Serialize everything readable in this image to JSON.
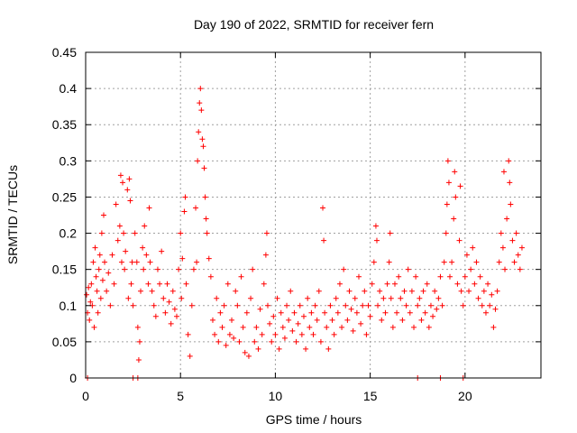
{
  "chart_data": {
    "type": "scatter",
    "title": "Day 190 of 2022, SRMTID for receiver fern",
    "xlabel": "GPS time / hours",
    "ylabel": "SRMTID / TECUs",
    "xlim": [
      0,
      24
    ],
    "ylim": [
      0,
      0.45
    ],
    "xticks": [
      0,
      5,
      10,
      15,
      20
    ],
    "yticks": [
      0,
      0.05,
      0.1,
      0.15,
      0.2,
      0.25,
      0.3,
      0.35,
      0.4,
      0.45
    ],
    "xtick_labels": [
      "0",
      "5",
      "10",
      "15",
      "20"
    ],
    "ytick_labels": [
      "0",
      "0.05",
      "0.1",
      "0.15",
      "0.2",
      "0.25",
      "0.3",
      "0.35",
      "0.4",
      "0.45"
    ],
    "grid": true,
    "marker": "+",
    "color": "#ff0000",
    "series": [
      {
        "name": "SRMTID",
        "points": [
          [
            0.05,
            0.115
          ],
          [
            0.1,
            0.09
          ],
          [
            0.15,
            0.125
          ],
          [
            0.2,
            0.08
          ],
          [
            0.25,
            0.105
          ],
          [
            0.3,
            0.13
          ],
          [
            0.35,
            0.1
          ],
          [
            0.4,
            0.16
          ],
          [
            0.45,
            0.07
          ],
          [
            0.5,
            0.18
          ],
          [
            0.55,
            0.14
          ],
          [
            0.6,
            0.12
          ],
          [
            0.65,
            0.09
          ],
          [
            0.7,
            0.15
          ],
          [
            0.75,
            0.17
          ],
          [
            0.8,
            0.11
          ],
          [
            0.85,
            0.2
          ],
          [
            0.9,
            0.135
          ],
          [
            0.95,
            0.225
          ],
          [
            1.0,
            0.16
          ],
          [
            1.1,
            0.12
          ],
          [
            1.2,
            0.145
          ],
          [
            1.3,
            0.1
          ],
          [
            1.4,
            0.17
          ],
          [
            1.5,
            0.13
          ],
          [
            1.6,
            0.24
          ],
          [
            1.7,
            0.19
          ],
          [
            1.8,
            0.21
          ],
          [
            1.85,
            0.28
          ],
          [
            1.9,
            0.16
          ],
          [
            1.95,
            0.27
          ],
          [
            2.0,
            0.2
          ],
          [
            2.05,
            0.15
          ],
          [
            2.1,
            0.175
          ],
          [
            2.2,
            0.26
          ],
          [
            2.25,
            0.11
          ],
          [
            2.3,
            0.275
          ],
          [
            2.35,
            0.245
          ],
          [
            2.4,
            0.13
          ],
          [
            2.45,
            0.16
          ],
          [
            2.5,
            0.1
          ],
          [
            2.6,
            0.2
          ],
          [
            2.7,
            0.16
          ],
          [
            2.75,
            0.07
          ],
          [
            2.8,
            0.025
          ],
          [
            2.85,
            0.05
          ],
          [
            2.9,
            0.12
          ],
          [
            3.0,
            0.18
          ],
          [
            3.05,
            0.15
          ],
          [
            3.1,
            0.21
          ],
          [
            3.2,
            0.17
          ],
          [
            3.3,
            0.13
          ],
          [
            3.35,
            0.235
          ],
          [
            3.4,
            0.16
          ],
          [
            3.5,
            0.12
          ],
          [
            3.6,
            0.1
          ],
          [
            3.7,
            0.085
          ],
          [
            3.8,
            0.15
          ],
          [
            3.9,
            0.13
          ],
          [
            4.0,
            0.175
          ],
          [
            4.1,
            0.11
          ],
          [
            4.2,
            0.09
          ],
          [
            4.3,
            0.13
          ],
          [
            4.4,
            0.105
          ],
          [
            4.5,
            0.075
          ],
          [
            4.6,
            0.12
          ],
          [
            4.7,
            0.095
          ],
          [
            4.8,
            0.085
          ],
          [
            4.9,
            0.15
          ],
          [
            5.0,
            0.2
          ],
          [
            5.05,
            0.11
          ],
          [
            5.1,
            0.165
          ],
          [
            5.2,
            0.23
          ],
          [
            5.25,
            0.25
          ],
          [
            5.3,
            0.13
          ],
          [
            5.4,
            0.06
          ],
          [
            5.5,
            0.03
          ],
          [
            5.6,
            0.1
          ],
          [
            5.7,
            0.15
          ],
          [
            5.8,
            0.235
          ],
          [
            5.85,
            0.16
          ],
          [
            5.9,
            0.3
          ],
          [
            5.95,
            0.34
          ],
          [
            6.0,
            0.38
          ],
          [
            6.05,
            0.4
          ],
          [
            6.1,
            0.37
          ],
          [
            6.15,
            0.33
          ],
          [
            6.2,
            0.32
          ],
          [
            6.25,
            0.29
          ],
          [
            6.3,
            0.25
          ],
          [
            6.35,
            0.22
          ],
          [
            6.4,
            0.2
          ],
          [
            6.5,
            0.165
          ],
          [
            6.6,
            0.14
          ],
          [
            6.7,
            0.08
          ],
          [
            6.8,
            0.06
          ],
          [
            6.9,
            0.11
          ],
          [
            7.0,
            0.05
          ],
          [
            7.1,
            0.09
          ],
          [
            7.2,
            0.07
          ],
          [
            7.3,
            0.1
          ],
          [
            7.4,
            0.045
          ],
          [
            7.5,
            0.13
          ],
          [
            7.6,
            0.06
          ],
          [
            7.7,
            0.08
          ],
          [
            7.8,
            0.055
          ],
          [
            7.9,
            0.12
          ],
          [
            8.0,
            0.1
          ],
          [
            8.1,
            0.05
          ],
          [
            8.2,
            0.14
          ],
          [
            8.3,
            0.07
          ],
          [
            8.4,
            0.035
          ],
          [
            8.5,
            0.09
          ],
          [
            8.6,
            0.03
          ],
          [
            8.7,
            0.11
          ],
          [
            8.8,
            0.15
          ],
          [
            8.9,
            0.05
          ],
          [
            9.0,
            0.07
          ],
          [
            9.1,
            0.04
          ],
          [
            9.2,
            0.095
          ],
          [
            9.3,
            0.06
          ],
          [
            9.4,
            0.13
          ],
          [
            9.5,
            0.17
          ],
          [
            9.55,
            0.2
          ],
          [
            9.6,
            0.1
          ],
          [
            9.7,
            0.075
          ],
          [
            9.8,
            0.05
          ],
          [
            9.9,
            0.085
          ],
          [
            10.0,
            0.06
          ],
          [
            10.1,
            0.11
          ],
          [
            10.2,
            0.04
          ],
          [
            10.3,
            0.09
          ],
          [
            10.4,
            0.07
          ],
          [
            10.5,
            0.055
          ],
          [
            10.6,
            0.1
          ],
          [
            10.7,
            0.08
          ],
          [
            10.8,
            0.12
          ],
          [
            10.9,
            0.065
          ],
          [
            11.0,
            0.09
          ],
          [
            11.1,
            0.05
          ],
          [
            11.2,
            0.075
          ],
          [
            11.3,
            0.1
          ],
          [
            11.4,
            0.06
          ],
          [
            11.5,
            0.085
          ],
          [
            11.6,
            0.04
          ],
          [
            11.7,
            0.11
          ],
          [
            11.8,
            0.07
          ],
          [
            11.9,
            0.09
          ],
          [
            12.0,
            0.06
          ],
          [
            12.1,
            0.1
          ],
          [
            12.2,
            0.08
          ],
          [
            12.3,
            0.12
          ],
          [
            12.4,
            0.05
          ],
          [
            12.5,
            0.235
          ],
          [
            12.55,
            0.19
          ],
          [
            12.6,
            0.09
          ],
          [
            12.7,
            0.07
          ],
          [
            12.8,
            0.04
          ],
          [
            12.9,
            0.1
          ],
          [
            13.0,
            0.08
          ],
          [
            13.1,
            0.06
          ],
          [
            13.2,
            0.11
          ],
          [
            13.3,
            0.09
          ],
          [
            13.4,
            0.13
          ],
          [
            13.5,
            0.07
          ],
          [
            13.6,
            0.15
          ],
          [
            13.7,
            0.1
          ],
          [
            13.8,
            0.08
          ],
          [
            13.9,
            0.12
          ],
          [
            14.0,
            0.095
          ],
          [
            14.1,
            0.065
          ],
          [
            14.2,
            0.11
          ],
          [
            14.3,
            0.09
          ],
          [
            14.4,
            0.14
          ],
          [
            14.5,
            0.075
          ],
          [
            14.6,
            0.1
          ],
          [
            14.7,
            0.12
          ],
          [
            14.8,
            0.06
          ],
          [
            14.9,
            0.1
          ],
          [
            15.0,
            0.085
          ],
          [
            15.1,
            0.13
          ],
          [
            15.2,
            0.16
          ],
          [
            15.3,
            0.21
          ],
          [
            15.35,
            0.19
          ],
          [
            15.4,
            0.1
          ],
          [
            15.5,
            0.12
          ],
          [
            15.6,
            0.08
          ],
          [
            15.7,
            0.11
          ],
          [
            15.8,
            0.09
          ],
          [
            15.9,
            0.13
          ],
          [
            16.0,
            0.16
          ],
          [
            16.05,
            0.2
          ],
          [
            16.1,
            0.11
          ],
          [
            16.2,
            0.07
          ],
          [
            16.3,
            0.13
          ],
          [
            16.4,
            0.09
          ],
          [
            16.5,
            0.14
          ],
          [
            16.6,
            0.11
          ],
          [
            16.7,
            0.08
          ],
          [
            16.8,
            0.12
          ],
          [
            16.9,
            0.1
          ],
          [
            17.0,
            0.15
          ],
          [
            17.1,
            0.09
          ],
          [
            17.2,
            0.12
          ],
          [
            17.3,
            0.07
          ],
          [
            17.4,
            0.14
          ],
          [
            17.5,
            0.1
          ],
          [
            17.6,
            0.11
          ],
          [
            17.7,
            0.08
          ],
          [
            17.8,
            0.12
          ],
          [
            17.9,
            0.09
          ],
          [
            18.0,
            0.13
          ],
          [
            18.1,
            0.07
          ],
          [
            18.2,
            0.1
          ],
          [
            18.3,
            0.085
          ],
          [
            18.4,
            0.12
          ],
          [
            18.5,
            0.095
          ],
          [
            18.6,
            0.11
          ],
          [
            18.7,
            0.14
          ],
          [
            18.8,
            0.1
          ],
          [
            18.9,
            0.16
          ],
          [
            19.0,
            0.2
          ],
          [
            19.05,
            0.24
          ],
          [
            19.1,
            0.3
          ],
          [
            19.15,
            0.27
          ],
          [
            19.2,
            0.14
          ],
          [
            19.3,
            0.16
          ],
          [
            19.4,
            0.22
          ],
          [
            19.45,
            0.285
          ],
          [
            19.5,
            0.25
          ],
          [
            19.6,
            0.13
          ],
          [
            19.7,
            0.19
          ],
          [
            19.75,
            0.265
          ],
          [
            19.8,
            0.12
          ],
          [
            19.9,
            0.1
          ],
          [
            20.0,
            0.14
          ],
          [
            20.1,
            0.17
          ],
          [
            20.2,
            0.12
          ],
          [
            20.3,
            0.15
          ],
          [
            20.4,
            0.18
          ],
          [
            20.5,
            0.13
          ],
          [
            20.6,
            0.16
          ],
          [
            20.7,
            0.11
          ],
          [
            20.8,
            0.14
          ],
          [
            20.9,
            0.1
          ],
          [
            21.0,
            0.12
          ],
          [
            21.1,
            0.09
          ],
          [
            21.2,
            0.13
          ],
          [
            21.3,
            0.1
          ],
          [
            21.4,
            0.115
          ],
          [
            21.5,
            0.07
          ],
          [
            21.6,
            0.095
          ],
          [
            21.7,
            0.12
          ],
          [
            21.8,
            0.16
          ],
          [
            21.9,
            0.2
          ],
          [
            22.0,
            0.18
          ],
          [
            22.05,
            0.285
          ],
          [
            22.1,
            0.15
          ],
          [
            22.2,
            0.22
          ],
          [
            22.3,
            0.3
          ],
          [
            22.35,
            0.27
          ],
          [
            22.4,
            0.24
          ],
          [
            22.5,
            0.19
          ],
          [
            22.6,
            0.16
          ],
          [
            22.7,
            0.2
          ],
          [
            22.8,
            0.17
          ],
          [
            22.9,
            0.15
          ],
          [
            23.0,
            0.18
          ],
          [
            0.1,
            0.0
          ],
          [
            2.5,
            0.0
          ],
          [
            2.75,
            0.0
          ],
          [
            17.5,
            0.0
          ],
          [
            18.7,
            0.0
          ],
          [
            19.9,
            0.0
          ]
        ]
      }
    ]
  }
}
